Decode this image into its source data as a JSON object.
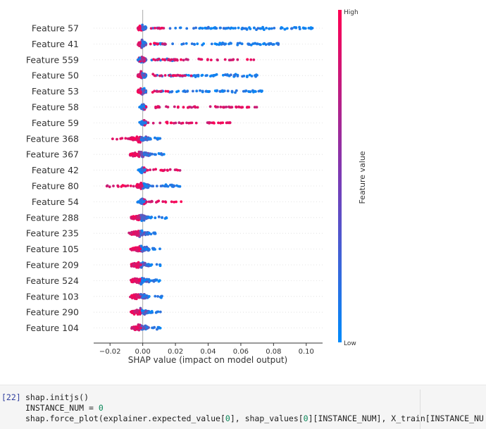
{
  "chart_data": {
    "type": "scatter",
    "subtype": "shap-beeswarm",
    "xlabel": "SHAP value (impact on model output)",
    "xlim": [
      -0.03,
      0.11
    ],
    "xticks": [
      -0.02,
      0.0,
      0.02,
      0.04,
      0.06,
      0.08,
      0.1
    ],
    "xtick_labels": [
      "−0.02",
      "0.00",
      "0.02",
      "0.04",
      "0.06",
      "0.08",
      "0.10"
    ],
    "colorbar": {
      "title": "Feature value",
      "high_label": "High",
      "low_label": "Low",
      "high_color": "#ff0052",
      "low_color": "#008bfb"
    },
    "features": [
      {
        "name": "Feature 57",
        "core": [
          -0.003,
          0.002
        ],
        "hi_side": "neg",
        "lo_tail": [
          0.005,
          0.104
        ],
        "hi_tail": [
          0.004,
          0.016
        ]
      },
      {
        "name": "Feature 41",
        "core": [
          -0.003,
          0.002
        ],
        "hi_side": "neg",
        "lo_tail": [
          0.005,
          0.083
        ],
        "hi_tail": [
          0.004,
          0.018
        ]
      },
      {
        "name": "Feature 559",
        "core": [
          -0.003,
          0.002
        ],
        "hi_side": "mix",
        "lo_tail": [
          0.003,
          0.02
        ],
        "hi_tail": [
          0.006,
          0.068
        ]
      },
      {
        "name": "Feature 50",
        "core": [
          -0.003,
          0.002
        ],
        "hi_side": "neg",
        "lo_tail": [
          0.005,
          0.072
        ],
        "hi_tail": [
          0.004,
          0.03
        ]
      },
      {
        "name": "Feature 53",
        "core": [
          -0.003,
          0.002
        ],
        "hi_side": "neg",
        "lo_tail": [
          0.005,
          0.073
        ],
        "hi_tail": [
          0.004,
          0.016
        ]
      },
      {
        "name": "Feature 58",
        "core": [
          -0.001,
          0.002
        ],
        "hi_side": "pos",
        "lo_tail": [
          -0.002,
          0.002
        ],
        "hi_tail": [
          0.002,
          0.071
        ]
      },
      {
        "name": "Feature 59",
        "core": [
          -0.001,
          0.002
        ],
        "hi_side": "pos",
        "lo_tail": [
          -0.002,
          0.002
        ],
        "hi_tail": [
          0.002,
          0.056
        ]
      },
      {
        "name": "Feature 368",
        "core": [
          -0.008,
          0.005
        ],
        "hi_side": "neg",
        "lo_tail": [
          0.001,
          0.012
        ],
        "hi_tail": [
          -0.019,
          -0.002
        ]
      },
      {
        "name": "Feature 367",
        "core": [
          -0.008,
          0.005
        ],
        "hi_side": "neg",
        "lo_tail": [
          0.001,
          0.015
        ],
        "hi_tail": [
          -0.008,
          -0.002
        ]
      },
      {
        "name": "Feature 42",
        "core": [
          -0.002,
          0.002
        ],
        "hi_side": "pos",
        "lo_tail": [
          -0.004,
          0.002
        ],
        "hi_tail": [
          0.002,
          0.026
        ]
      },
      {
        "name": "Feature 80",
        "core": [
          -0.004,
          0.004
        ],
        "hi_side": "neg",
        "lo_tail": [
          0.001,
          0.024
        ],
        "hi_tail": [
          -0.023,
          -0.002
        ]
      },
      {
        "name": "Feature 54",
        "core": [
          -0.002,
          0.002
        ],
        "hi_side": "pos",
        "lo_tail": [
          -0.004,
          0.002
        ],
        "hi_tail": [
          0.002,
          0.025
        ]
      },
      {
        "name": "Feature 288",
        "core": [
          -0.007,
          0.004
        ],
        "hi_side": "neg",
        "lo_tail": [
          0.001,
          0.015
        ],
        "hi_tail": [
          -0.008,
          -0.001
        ]
      },
      {
        "name": "Feature 235",
        "core": [
          -0.008,
          0.004
        ],
        "hi_side": "neg",
        "lo_tail": [
          0.001,
          0.008
        ],
        "hi_tail": [
          -0.009,
          -0.001
        ]
      },
      {
        "name": "Feature 105",
        "core": [
          -0.007,
          0.004
        ],
        "hi_side": "neg",
        "lo_tail": [
          0.001,
          0.011
        ],
        "hi_tail": [
          -0.008,
          -0.001
        ]
      },
      {
        "name": "Feature 209",
        "core": [
          -0.007,
          0.004
        ],
        "hi_side": "neg",
        "lo_tail": [
          0.001,
          0.011
        ],
        "hi_tail": [
          -0.008,
          -0.001
        ]
      },
      {
        "name": "Feature 524",
        "core": [
          -0.007,
          0.004
        ],
        "hi_side": "neg",
        "lo_tail": [
          0.001,
          0.011
        ],
        "hi_tail": [
          -0.008,
          -0.001
        ]
      },
      {
        "name": "Feature 103",
        "core": [
          -0.007,
          0.004
        ],
        "hi_side": "neg",
        "lo_tail": [
          0.001,
          0.012
        ],
        "hi_tail": [
          -0.008,
          -0.001
        ]
      },
      {
        "name": "Feature 290",
        "core": [
          -0.007,
          0.004
        ],
        "hi_side": "neg",
        "lo_tail": [
          0.001,
          0.011
        ],
        "hi_tail": [
          -0.009,
          -0.001
        ]
      },
      {
        "name": "Feature 104",
        "core": [
          -0.007,
          0.004
        ],
        "hi_side": "neg",
        "lo_tail": [
          0.001,
          0.012
        ],
        "hi_tail": [
          -0.008,
          -0.001
        ]
      }
    ]
  },
  "code_cell": {
    "prompt": "[22]",
    "line1": "shap.initjs()",
    "line2_prefix": "INSTANCE_NUM = ",
    "line2_num": "0",
    "line3_a": "shap.force_plot(explainer.expected_value[",
    "line3_b": "0",
    "line3_c": "], shap_values[",
    "line3_d": "0",
    "line3_e": "][INSTANCE_NUM], X_train[INSTANCE_NU"
  }
}
